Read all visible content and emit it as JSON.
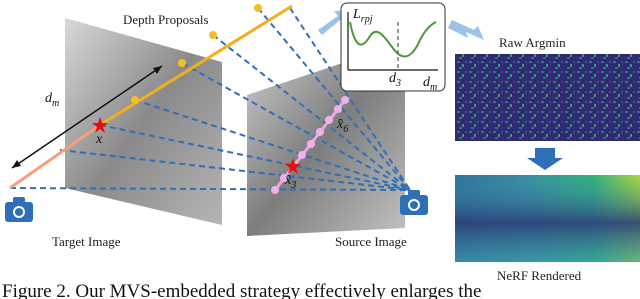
{
  "labels": {
    "depth_proposals": "Depth Proposals",
    "d_m_left": {
      "symbol": "d",
      "subscript": "m"
    },
    "x": "x",
    "x6": {
      "symbol": "x̂",
      "subscript": "6"
    },
    "x3": {
      "symbol": "x̂",
      "subscript": "3"
    },
    "target_image": "Target Image",
    "source_image": "Source Image",
    "loss": {
      "symbol": "L",
      "subscript": "rpj"
    },
    "d3": {
      "symbol": "d",
      "subscript": "3"
    },
    "d_m_plot": {
      "symbol": "d",
      "subscript": "m"
    },
    "raw_argmin": "Raw Argmin",
    "nerf_rendered": "NeRF Rendered"
  },
  "caption": "Figure 2. Our MVS-embedded strategy effectively enlarges the"
}
